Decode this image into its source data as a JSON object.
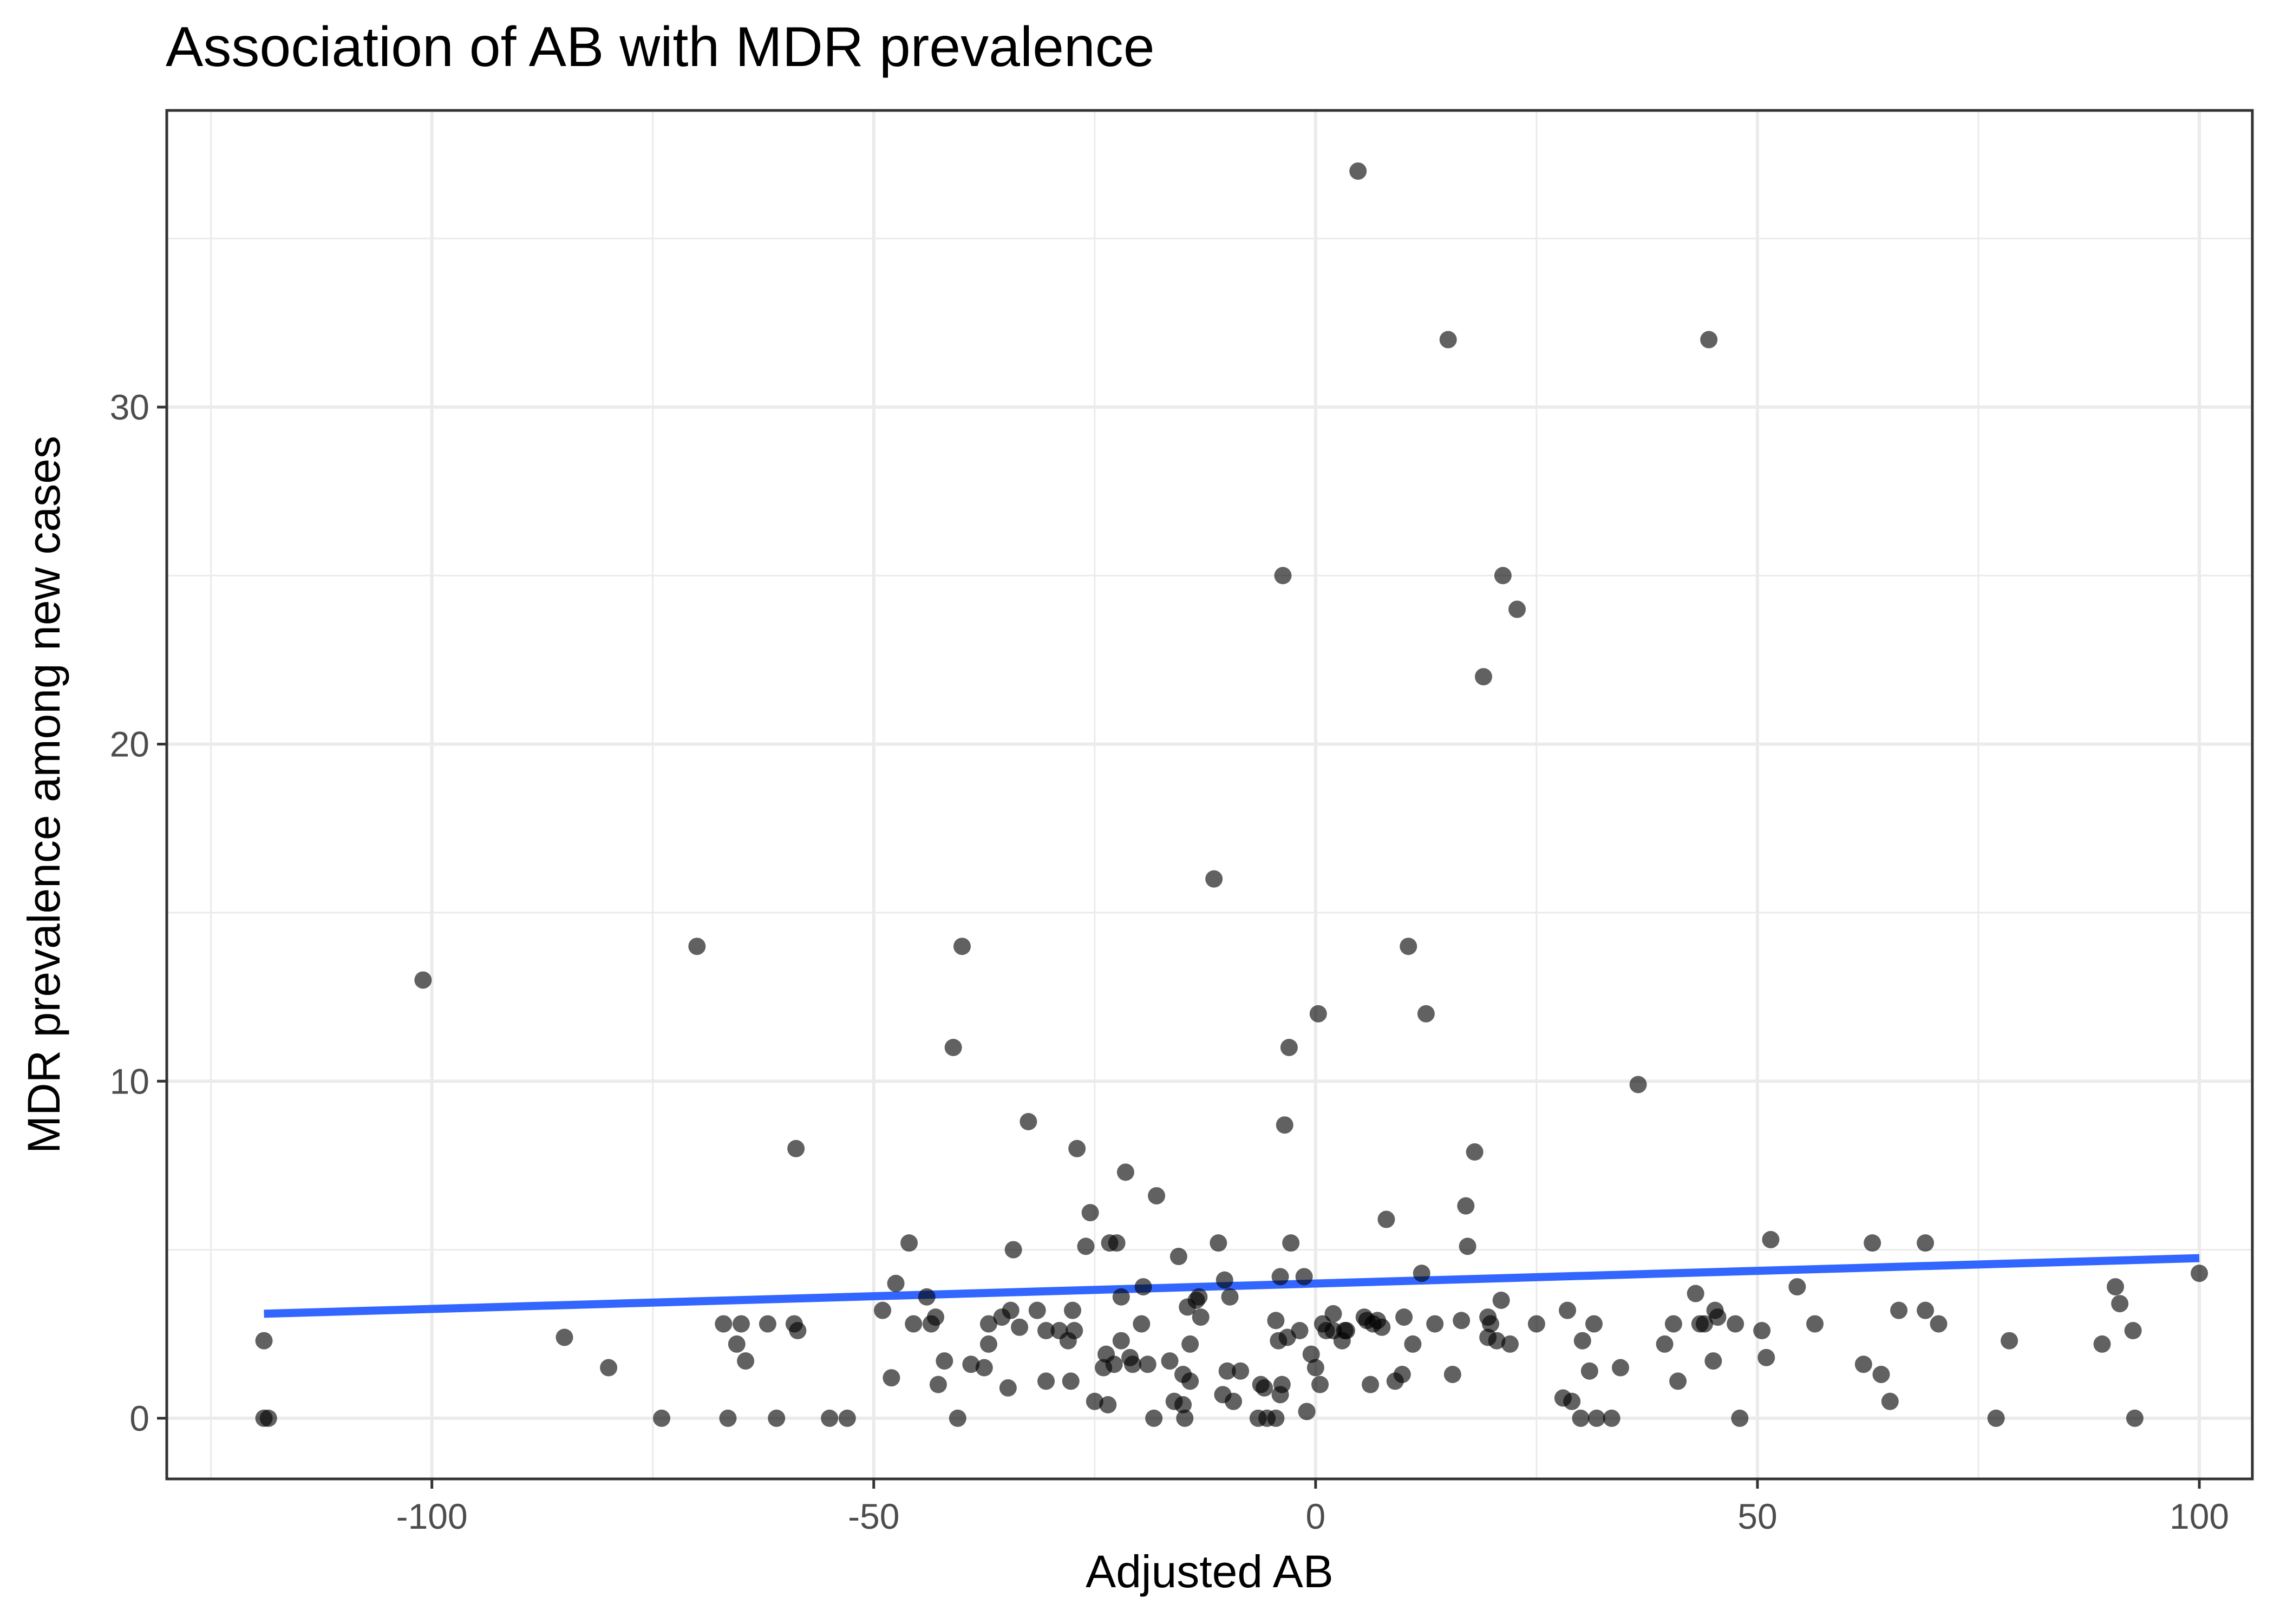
{
  "colors": {
    "trend": "#3366ff",
    "point": "#000000"
  },
  "chart_data": {
    "type": "scatter",
    "title": "Association of AB with MDR prevalence",
    "xlabel": "Adjusted AB",
    "ylabel": "MDR prevalence among new cases",
    "xlim": [
      -130,
      106
    ],
    "ylim": [
      -1.8,
      38.8
    ],
    "x_major_ticks": [
      -100,
      -50,
      0,
      50,
      100
    ],
    "x_tick_labels": [
      "-100",
      "-50",
      "0",
      "50",
      "100"
    ],
    "x_minor_ticks": [
      -125,
      -75,
      -25,
      25,
      75
    ],
    "y_major_ticks": [
      0,
      10,
      20,
      30
    ],
    "y_tick_labels": [
      "0",
      "10",
      "20",
      "30"
    ],
    "y_minor_ticks": [
      5,
      15,
      25,
      35
    ],
    "grid": true,
    "trend_line": {
      "type": "linear fit",
      "x": [
        -119,
        100
      ],
      "y": [
        3.1,
        4.75
      ]
    },
    "points": [
      [
        -119,
        2.3
      ],
      [
        -119,
        0
      ],
      [
        -118.5,
        0
      ],
      [
        -101,
        13
      ],
      [
        -85,
        2.4
      ],
      [
        -80,
        1.5
      ],
      [
        -74,
        0
      ],
      [
        -70,
        14
      ],
      [
        -67,
        2.8
      ],
      [
        -66.5,
        0
      ],
      [
        -65.5,
        2.2
      ],
      [
        -65,
        2.8
      ],
      [
        -64.5,
        1.7
      ],
      [
        -62,
        2.8
      ],
      [
        -61,
        0
      ],
      [
        -59,
        2.8
      ],
      [
        -58.8,
        8
      ],
      [
        -58.6,
        2.6
      ],
      [
        -55,
        0
      ],
      [
        -53,
        0
      ],
      [
        -49,
        3.2
      ],
      [
        -48,
        1.2
      ],
      [
        -47.5,
        4
      ],
      [
        -46,
        5.2
      ],
      [
        -45.5,
        2.8
      ],
      [
        -44,
        3.6
      ],
      [
        -43.5,
        2.8
      ],
      [
        -43,
        3
      ],
      [
        -42.7,
        1
      ],
      [
        -42,
        1.7
      ],
      [
        -41,
        11
      ],
      [
        -40.5,
        0
      ],
      [
        -40,
        14
      ],
      [
        -39,
        1.6
      ],
      [
        -37.5,
        1.5
      ],
      [
        -37,
        2.2
      ],
      [
        -37,
        2.8
      ],
      [
        -35.5,
        3
      ],
      [
        -34.8,
        0.9
      ],
      [
        -34.5,
        3.2
      ],
      [
        -34.2,
        5
      ],
      [
        -33.5,
        2.7
      ],
      [
        -32.5,
        8.8
      ],
      [
        -31.5,
        3.2
      ],
      [
        -30.5,
        2.6
      ],
      [
        -30.5,
        1.1
      ],
      [
        -29,
        2.6
      ],
      [
        -28,
        2.3
      ],
      [
        -27.7,
        1.1
      ],
      [
        -27.5,
        3.2
      ],
      [
        -27.3,
        2.6
      ],
      [
        -27,
        8
      ],
      [
        -26,
        5.1
      ],
      [
        -25.5,
        6.1
      ],
      [
        -25,
        0.5
      ],
      [
        -24,
        1.5
      ],
      [
        -23.7,
        1.9
      ],
      [
        -23.5,
        0.4
      ],
      [
        -23.3,
        5.2
      ],
      [
        -22.8,
        1.6
      ],
      [
        -22.5,
        5.2
      ],
      [
        -22,
        3.6
      ],
      [
        -22,
        2.3
      ],
      [
        -21.5,
        7.3
      ],
      [
        -21,
        1.8
      ],
      [
        -20.7,
        1.6
      ],
      [
        -19.7,
        2.8
      ],
      [
        -19.5,
        3.9
      ],
      [
        -19,
        1.6
      ],
      [
        -18.3,
        0
      ],
      [
        -18,
        6.6
      ],
      [
        -16.5,
        1.7
      ],
      [
        -16,
        0.5
      ],
      [
        -15.5,
        4.8
      ],
      [
        -15,
        1.3
      ],
      [
        -15,
        0.4
      ],
      [
        -14.8,
        0
      ],
      [
        -14.5,
        3.3
      ],
      [
        -14.2,
        2.2
      ],
      [
        -14.2,
        1.1
      ],
      [
        -13.5,
        3.5
      ],
      [
        -13.2,
        3.6
      ],
      [
        -13,
        3
      ],
      [
        -11.5,
        16
      ],
      [
        -11,
        5.2
      ],
      [
        -10.5,
        0.7
      ],
      [
        -10.3,
        4.1
      ],
      [
        -10,
        1.4
      ],
      [
        -9.7,
        3.6
      ],
      [
        -9.3,
        0.5
      ],
      [
        -8.5,
        1.4
      ],
      [
        -6.5,
        0
      ],
      [
        -6.2,
        1
      ],
      [
        -5.8,
        0.9
      ],
      [
        -5.5,
        0
      ],
      [
        -4.5,
        0
      ],
      [
        -4.5,
        2.9
      ],
      [
        -4.2,
        2.3
      ],
      [
        -4,
        0.7
      ],
      [
        -4,
        4.2
      ],
      [
        -3.8,
        1
      ],
      [
        -3.7,
        25
      ],
      [
        -3.5,
        8.7
      ],
      [
        -3.2,
        2.4
      ],
      [
        -3,
        11
      ],
      [
        -2.8,
        5.2
      ],
      [
        -1.8,
        2.6
      ],
      [
        -1.3,
        4.2
      ],
      [
        -1,
        0.2
      ],
      [
        -0.5,
        1.9
      ],
      [
        0,
        1.5
      ],
      [
        0.3,
        12
      ],
      [
        0.5,
        1
      ],
      [
        0.8,
        2.8
      ],
      [
        1.2,
        2.6
      ],
      [
        2,
        2.6
      ],
      [
        2,
        3.1
      ],
      [
        3,
        2.3
      ],
      [
        3.3,
        2.6
      ],
      [
        3.5,
        2.6
      ],
      [
        4.8,
        37
      ],
      [
        5.5,
        3
      ],
      [
        5.8,
        2.9
      ],
      [
        6.2,
        1
      ],
      [
        6.5,
        2.8
      ],
      [
        7,
        2.9
      ],
      [
        7.5,
        2.7
      ],
      [
        8,
        5.9
      ],
      [
        9,
        1.1
      ],
      [
        9.8,
        1.3
      ],
      [
        10,
        3
      ],
      [
        10.5,
        14
      ],
      [
        11,
        2.2
      ],
      [
        12,
        4.3
      ],
      [
        12.5,
        12
      ],
      [
        13.5,
        2.8
      ],
      [
        15,
        32
      ],
      [
        15.5,
        1.3
      ],
      [
        16.5,
        2.9
      ],
      [
        17,
        6.3
      ],
      [
        17.2,
        5.1
      ],
      [
        18,
        7.9
      ],
      [
        19,
        22
      ],
      [
        19.5,
        3
      ],
      [
        19.8,
        2.8
      ],
      [
        19.5,
        2.4
      ],
      [
        20.5,
        2.3
      ],
      [
        21,
        3.5
      ],
      [
        21.2,
        25
      ],
      [
        22,
        2.2
      ],
      [
        22.8,
        24
      ],
      [
        25,
        2.8
      ],
      [
        28,
        0.6
      ],
      [
        28.5,
        3.2
      ],
      [
        29,
        0.5
      ],
      [
        30,
        0
      ],
      [
        30.2,
        2.3
      ],
      [
        31,
        1.4
      ],
      [
        31.5,
        2.8
      ],
      [
        31.8,
        0
      ],
      [
        33.5,
        0
      ],
      [
        34.5,
        1.5
      ],
      [
        36.5,
        9.9
      ],
      [
        39.5,
        2.2
      ],
      [
        40.5,
        2.8
      ],
      [
        41,
        1.1
      ],
      [
        43,
        3.7
      ],
      [
        43.5,
        2.8
      ],
      [
        44,
        2.8
      ],
      [
        44.5,
        32
      ],
      [
        45,
        1.7
      ],
      [
        45.2,
        3.2
      ],
      [
        45.5,
        3
      ],
      [
        47.5,
        2.8
      ],
      [
        48,
        0
      ],
      [
        50.5,
        2.6
      ],
      [
        51,
        1.8
      ],
      [
        51.5,
        5.3
      ],
      [
        54.5,
        3.9
      ],
      [
        56.5,
        2.8
      ],
      [
        62,
        1.6
      ],
      [
        63,
        5.2
      ],
      [
        64,
        1.3
      ],
      [
        65,
        0.5
      ],
      [
        66,
        3.2
      ],
      [
        69,
        5.2
      ],
      [
        69,
        3.2
      ],
      [
        70.5,
        2.8
      ],
      [
        77,
        0
      ],
      [
        78.5,
        2.3
      ],
      [
        89,
        2.2
      ],
      [
        90.5,
        3.9
      ],
      [
        91,
        3.4
      ],
      [
        92.5,
        2.6
      ],
      [
        92.7,
        0
      ],
      [
        100,
        4.3
      ]
    ]
  }
}
